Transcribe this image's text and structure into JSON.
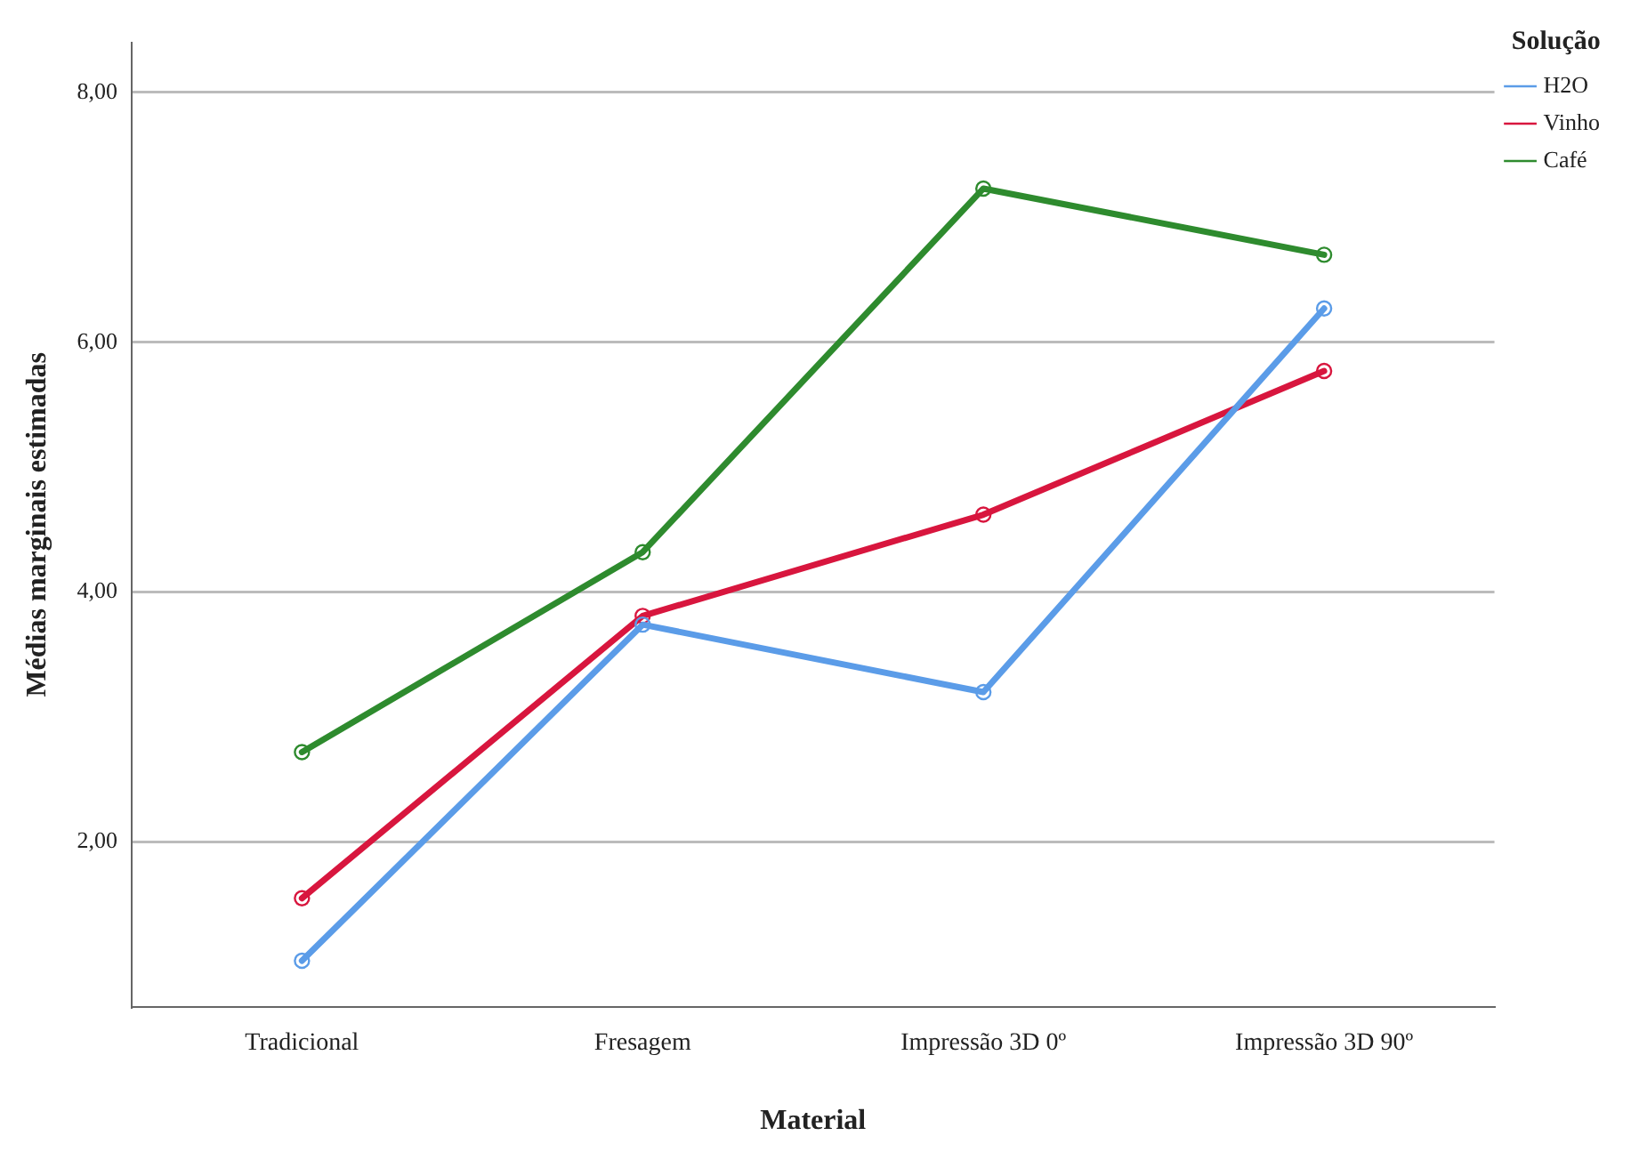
{
  "chart_data": {
    "type": "line",
    "xlabel": "Material",
    "ylabel": "Médias marginais estimadas",
    "legend_title": "Solução",
    "categories": [
      "Tradicional",
      "Fresagem",
      "Impressão 3D 0º",
      "Impressão 3D 90º"
    ],
    "series": [
      {
        "name": "H2O",
        "color": "#5b9ce8",
        "values": [
          1.05,
          3.74,
          3.2,
          6.27
        ]
      },
      {
        "name": "Vinho",
        "color": "#d8163e",
        "values": [
          1.55,
          3.81,
          4.62,
          5.77
        ]
      },
      {
        "name": "Café",
        "color": "#2e8b2e",
        "values": [
          2.72,
          4.32,
          7.23,
          6.7
        ]
      }
    ],
    "ylim": [
      0.68,
      8.4
    ],
    "yticks": [
      {
        "value": 2,
        "label": "2,00"
      },
      {
        "value": 4,
        "label": "4,00"
      },
      {
        "value": 6,
        "label": "6,00"
      },
      {
        "value": 8,
        "label": "8,00"
      }
    ],
    "grid": "y",
    "legend": "top right",
    "marker": "circle",
    "line_style": "solid"
  }
}
